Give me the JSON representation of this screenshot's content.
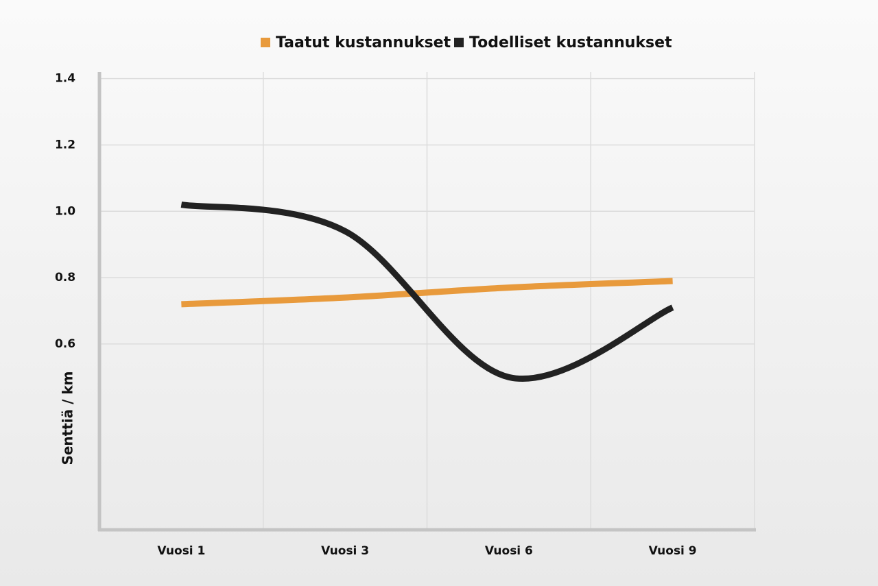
{
  "chart_data": {
    "type": "line",
    "y_label": "Senttiä / km",
    "categories": [
      "Vuosi 1",
      "Vuosi 3",
      "Vuosi 6",
      "Vuosi 9"
    ],
    "series": [
      {
        "name": "Taatut kustannukset",
        "color": "#e89a3c",
        "values": [
          0.72,
          0.74,
          0.77,
          0.79
        ]
      },
      {
        "name": "Todelliset kustannukset",
        "color": "#222222",
        "values": [
          1.02,
          0.94,
          0.5,
          0.71
        ]
      }
    ],
    "ylim": [
      0.04,
      1.42
    ],
    "yticks": [
      0.6,
      {
        "value": 0.8,
        "label": "0.8"
      },
      {
        "value": 1.0,
        "label": "1.0"
      },
      1.2,
      1.4
    ],
    "grid": true
  }
}
